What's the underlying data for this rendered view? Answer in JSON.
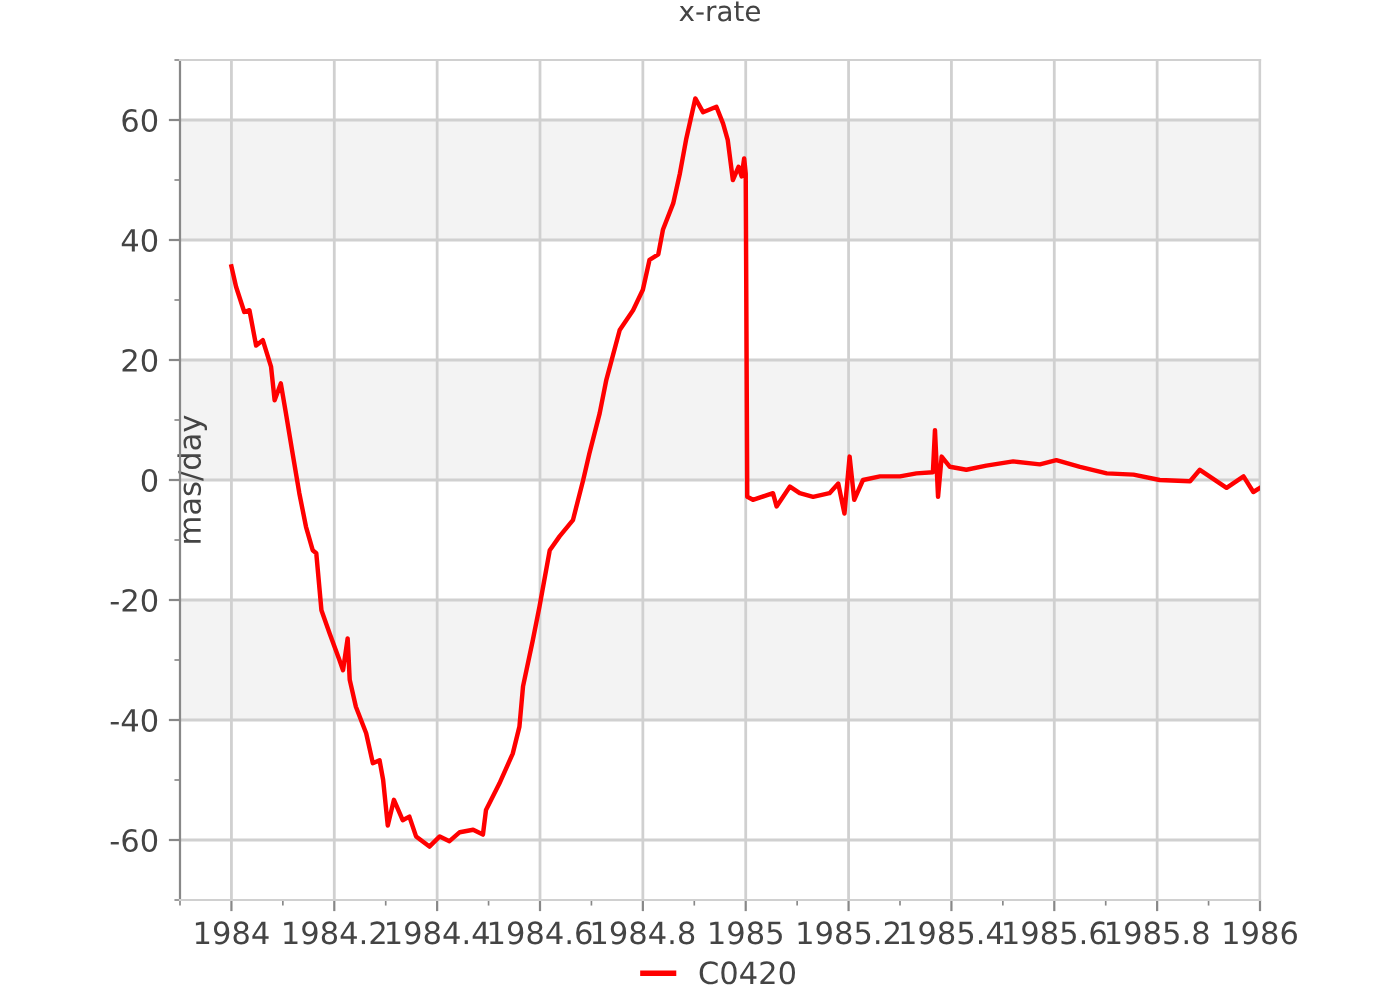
{
  "chart_data": {
    "type": "line",
    "title": "x-rate",
    "ylabel": "mas/day",
    "x": [
      1984.0,
      1984.009,
      1984.025,
      1984.035,
      1984.048,
      1984.061,
      1984.077,
      1984.084,
      1984.096,
      1984.106,
      1984.119,
      1984.132,
      1984.145,
      1984.158,
      1984.165,
      1984.175,
      1984.191,
      1984.21,
      1984.217,
      1984.226,
      1984.23,
      1984.242,
      1984.262,
      1984.275,
      1984.288,
      1984.295,
      1984.304,
      1984.316,
      1984.333,
      1984.346,
      1984.359,
      1984.385,
      1984.405,
      1984.424,
      1984.444,
      1984.47,
      1984.489,
      1984.495,
      1984.521,
      1984.547,
      1984.56,
      1984.567,
      1984.586,
      1984.599,
      1984.619,
      1984.638,
      1984.664,
      1984.684,
      1984.696,
      1984.716,
      1984.729,
      1984.755,
      1984.781,
      1984.8,
      1984.813,
      1984.83,
      1984.839,
      1984.859,
      1984.872,
      1984.884,
      1984.902,
      1984.917,
      1984.943,
      1984.956,
      1984.965,
      1984.975,
      1984.986,
      1984.992,
      1984.997,
      1985.0,
      1985.003,
      1985.014,
      1985.053,
      1985.06,
      1985.086,
      1985.105,
      1985.131,
      1985.163,
      1985.18,
      1985.192,
      1985.202,
      1985.211,
      1985.228,
      1985.261,
      1985.3,
      1985.332,
      1985.364,
      1985.368,
      1985.374,
      1985.381,
      1985.397,
      1985.429,
      1985.468,
      1985.52,
      1985.572,
      1985.604,
      1985.65,
      1985.702,
      1985.754,
      1985.805,
      1985.864,
      1985.883,
      1985.935,
      1985.968,
      1985.987,
      1986.0
    ],
    "series": [
      {
        "name": "C0420",
        "color": "#ff0000",
        "values": [
          35.6,
          32.2,
          28,
          28.3,
          22.4,
          23.3,
          18.9,
          13.3,
          16.1,
          11.1,
          4.4,
          -2.2,
          -7.8,
          -11.7,
          -12.2,
          -21.7,
          -25.6,
          -30,
          -31.7,
          -26.4,
          -33.3,
          -37.8,
          -42.2,
          -47.2,
          -46.7,
          -50,
          -57.6,
          -53.3,
          -56.7,
          -56.1,
          -59.4,
          -61.1,
          -59.4,
          -60.2,
          -58.7,
          -58.3,
          -59.1,
          -55,
          -50.6,
          -45.6,
          -41.1,
          -34.4,
          -26.7,
          -21.1,
          -11.7,
          -9.4,
          -6.7,
          0,
          4.4,
          11.1,
          16.7,
          25,
          28.3,
          31.7,
          36.7,
          37.6,
          41.7,
          46.1,
          51.1,
          56.7,
          63.6,
          61.3,
          62.2,
          59.4,
          56.7,
          50,
          52.2,
          50.6,
          53.6,
          51.1,
          -2.8,
          -3.3,
          -2.2,
          -4.4,
          -1.1,
          -2.2,
          -2.8,
          -2.2,
          -0.6,
          -5.6,
          3.9,
          -3.3,
          0,
          0.6,
          0.6,
          1.1,
          1.3,
          8.3,
          -2.8,
          3.9,
          2.2,
          1.7,
          2.4,
          3.1,
          2.6,
          3.3,
          2.2,
          1.1,
          0.9,
          0,
          -0.2,
          1.7,
          -1.3,
          0.6,
          -2,
          -1.3
        ]
      }
    ],
    "xlim": [
      1983.9,
      1986
    ],
    "xticks": [
      1984,
      1984.2,
      1984.4,
      1984.6,
      1984.8,
      1985,
      1985.2,
      1985.4,
      1985.6,
      1985.8,
      1986
    ],
    "ylim": [
      -70,
      70
    ],
    "yticks": [
      -60,
      -40,
      -20,
      0,
      20,
      40,
      60
    ],
    "bands": [
      {
        "axis": "y",
        "from": 40,
        "to": 60,
        "color": "#f3f3f3"
      },
      {
        "axis": "y",
        "from": 0,
        "to": 20,
        "color": "#f3f3f3"
      },
      {
        "axis": "y",
        "from": -40,
        "to": -20,
        "color": "#f3f3f3"
      }
    ],
    "grid": true,
    "legend": "bottom",
    "marker": "none",
    "line_style": "solid"
  }
}
